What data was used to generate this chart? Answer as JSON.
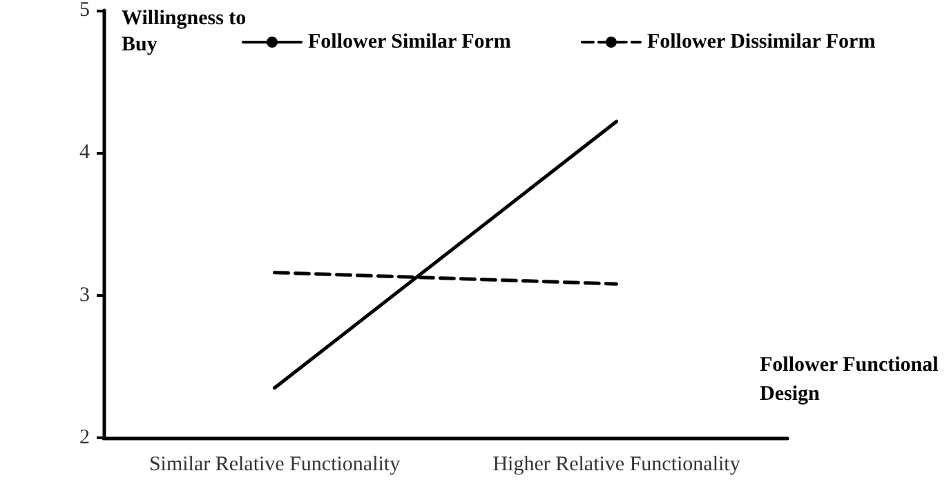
{
  "chart_data": {
    "type": "line",
    "ylabel": "Willingness to Buy",
    "xlabel": "Follower Functional Design",
    "categories": [
      "Similar Relative Functionality",
      "Higher Relative Functionality"
    ],
    "series": [
      {
        "name": "Follower Similar Form",
        "color": "#000000",
        "values": [
          2.35,
          4.22
        ],
        "line_style": "solid"
      },
      {
        "name": "Follower Dissimilar Form",
        "color": "#000000",
        "values": [
          3.16,
          3.08
        ],
        "line_style": "dashed"
      }
    ],
    "ylim": [
      2,
      5
    ],
    "yticks": [
      2,
      3,
      4,
      5
    ],
    "grid": false,
    "legend": "top",
    "marker": "none"
  }
}
